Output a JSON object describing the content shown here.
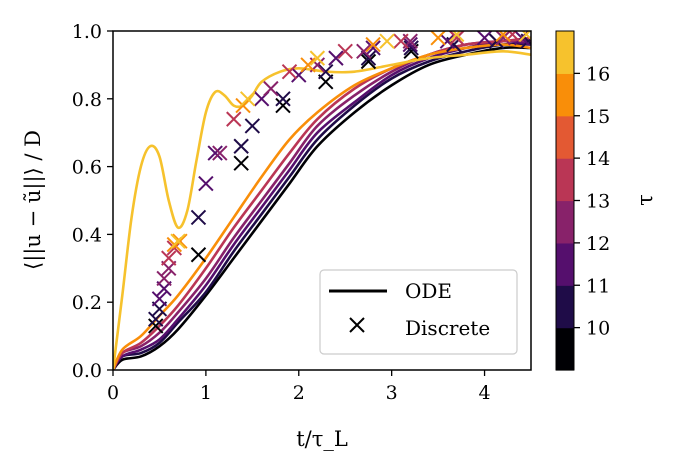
{
  "chart_data": {
    "type": "line",
    "title": "",
    "xlabel": "t/τ_L",
    "ylabel": "⟨||u − ũ||⟩ / D",
    "xlim": [
      0,
      4.5
    ],
    "ylim": [
      0.0,
      1.0
    ],
    "x_ticks": [
      "0",
      "1",
      "2",
      "3",
      "4"
    ],
    "y_ticks": [
      "0.0",
      "0.2",
      "0.4",
      "0.6",
      "0.8",
      "1.0"
    ],
    "grid": false,
    "legend": {
      "position": "lower-right",
      "entries": [
        {
          "label": "ODE",
          "marker": "line"
        },
        {
          "label": "Discrete",
          "marker": "x"
        }
      ]
    },
    "colorbar": {
      "label": "τ",
      "levels": [
        "10",
        "11",
        "12",
        "13",
        "14",
        "15",
        "16"
      ],
      "colors": [
        "#000004",
        "#1f0c48",
        "#550f6d",
        "#88226a",
        "#ba3655",
        "#e35933",
        "#f98e09",
        "#f6c22d"
      ]
    },
    "ode_series": [
      {
        "tau": "10",
        "color": "#000004",
        "x": [
          0,
          0.1,
          0.3,
          0.5,
          0.7,
          1.0,
          1.3,
          1.6,
          1.9,
          2.2,
          2.6,
          3.0,
          3.4,
          3.8,
          4.2,
          4.5
        ],
        "y": [
          0,
          0.03,
          0.04,
          0.07,
          0.12,
          0.22,
          0.33,
          0.44,
          0.55,
          0.66,
          0.76,
          0.84,
          0.9,
          0.93,
          0.95,
          0.95
        ]
      },
      {
        "tau": "11",
        "color": "#1f0c48",
        "x": [
          0,
          0.1,
          0.3,
          0.5,
          0.7,
          1.0,
          1.3,
          1.6,
          1.9,
          2.2,
          2.6,
          3.0,
          3.4,
          3.8,
          4.2,
          4.5
        ],
        "y": [
          0,
          0.04,
          0.05,
          0.08,
          0.14,
          0.23,
          0.35,
          0.46,
          0.57,
          0.68,
          0.78,
          0.86,
          0.91,
          0.94,
          0.96,
          0.96
        ]
      },
      {
        "tau": "12",
        "color": "#550f6d",
        "x": [
          0,
          0.1,
          0.3,
          0.5,
          0.7,
          1.0,
          1.3,
          1.6,
          1.9,
          2.2,
          2.6,
          3.0,
          3.4,
          3.8,
          4.2,
          4.5
        ],
        "y": [
          0,
          0.04,
          0.06,
          0.09,
          0.15,
          0.25,
          0.37,
          0.48,
          0.59,
          0.7,
          0.79,
          0.87,
          0.92,
          0.95,
          0.97,
          0.96
        ]
      },
      {
        "tau": "13",
        "color": "#88226a",
        "x": [
          0,
          0.1,
          0.3,
          0.5,
          0.7,
          1.0,
          1.3,
          1.6,
          1.9,
          2.2,
          2.6,
          3.0,
          3.4,
          3.8,
          4.2,
          4.5
        ],
        "y": [
          0,
          0.05,
          0.07,
          0.11,
          0.17,
          0.27,
          0.39,
          0.5,
          0.61,
          0.72,
          0.81,
          0.88,
          0.93,
          0.96,
          0.97,
          0.97
        ]
      },
      {
        "tau": "14",
        "color": "#ba3655",
        "x": [
          0,
          0.1,
          0.3,
          0.5,
          0.7,
          1.0,
          1.3,
          1.6,
          1.9,
          2.2,
          2.6,
          3.0,
          3.4,
          3.8,
          4.2,
          4.5
        ],
        "y": [
          0,
          0.05,
          0.08,
          0.13,
          0.19,
          0.3,
          0.42,
          0.53,
          0.64,
          0.74,
          0.83,
          0.89,
          0.93,
          0.96,
          0.97,
          0.98
        ]
      },
      {
        "tau": "15",
        "color": "#f98e09",
        "x": [
          0,
          0.1,
          0.3,
          0.5,
          0.7,
          1.0,
          1.3,
          1.6,
          1.9,
          2.2,
          2.6,
          3.0,
          3.4,
          3.8,
          4.2,
          4.5
        ],
        "y": [
          0,
          0.06,
          0.1,
          0.16,
          0.22,
          0.33,
          0.45,
          0.57,
          0.68,
          0.76,
          0.84,
          0.89,
          0.93,
          0.95,
          0.96,
          0.95
        ]
      },
      {
        "tau": "16",
        "color": "#f6c22d",
        "x": [
          0,
          0.1,
          0.2,
          0.3,
          0.4,
          0.5,
          0.6,
          0.7,
          0.8,
          0.9,
          1.0,
          1.1,
          1.2,
          1.3,
          1.4,
          1.5,
          1.6,
          1.8,
          2.0,
          2.3,
          2.6,
          3.0,
          3.4,
          3.8,
          4.2,
          4.5
        ],
        "y": [
          0,
          0.22,
          0.45,
          0.6,
          0.66,
          0.63,
          0.5,
          0.42,
          0.47,
          0.62,
          0.76,
          0.82,
          0.81,
          0.78,
          0.78,
          0.81,
          0.85,
          0.88,
          0.89,
          0.88,
          0.88,
          0.9,
          0.92,
          0.93,
          0.94,
          0.93
        ]
      }
    ],
    "discrete_series": [
      {
        "tau": "10",
        "color": "#000004",
        "x": [
          0.46,
          0.92,
          1.38,
          1.83,
          2.29,
          2.75,
          3.21,
          3.67,
          4.13
        ],
        "y": [
          0.13,
          0.34,
          0.61,
          0.78,
          0.85,
          0.91,
          0.94,
          0.96,
          0.97
        ]
      },
      {
        "tau": "11",
        "color": "#1f0c48",
        "x": [
          0.46,
          0.5,
          0.92,
          1.38,
          1.5,
          1.83,
          2.29,
          2.75,
          3.21,
          3.67,
          4.13,
          4.47
        ],
        "y": [
          0.15,
          0.18,
          0.45,
          0.66,
          0.72,
          0.8,
          0.88,
          0.92,
          0.95,
          0.96,
          0.97,
          0.97
        ]
      },
      {
        "tau": "12",
        "color": "#550f6d",
        "x": [
          0.5,
          0.55,
          1.0,
          1.1,
          1.6,
          2.0,
          2.4,
          2.8,
          3.2,
          3.6,
          4.0,
          4.4
        ],
        "y": [
          0.21,
          0.24,
          0.55,
          0.64,
          0.8,
          0.87,
          0.92,
          0.95,
          0.96,
          0.97,
          0.98,
          0.98
        ]
      },
      {
        "tau": "13",
        "color": "#88226a",
        "x": [
          0.55,
          0.6,
          1.15,
          1.7,
          2.2,
          2.7,
          3.2,
          3.7,
          4.2
        ],
        "y": [
          0.27,
          0.3,
          0.64,
          0.83,
          0.9,
          0.94,
          0.97,
          0.98,
          0.98
        ]
      },
      {
        "tau": "14",
        "color": "#ba3655",
        "x": [
          0.6,
          0.66,
          1.3,
          1.9,
          2.5,
          3.1,
          3.7,
          4.3
        ],
        "y": [
          0.33,
          0.36,
          0.74,
          0.88,
          0.94,
          0.97,
          0.98,
          0.99
        ]
      },
      {
        "tau": "15",
        "color": "#f98e09",
        "x": [
          0.66,
          0.72,
          1.4,
          2.1,
          2.8,
          3.5,
          4.2
        ],
        "y": [
          0.37,
          0.38,
          0.78,
          0.9,
          0.96,
          0.98,
          0.99
        ]
      },
      {
        "tau": "16",
        "color": "#f6c22d",
        "x": [
          0.7,
          1.45,
          2.2,
          2.95,
          3.7,
          4.45
        ],
        "y": [
          0.38,
          0.8,
          0.92,
          0.97,
          0.99,
          0.99
        ]
      }
    ]
  }
}
